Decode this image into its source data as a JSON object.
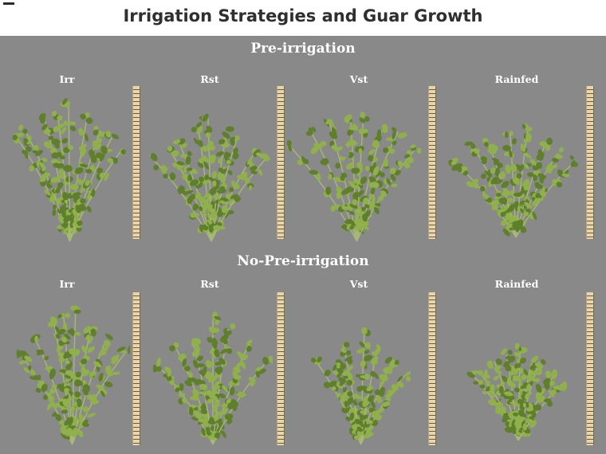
{
  "title": "Irrigation Strategies and Guar Growth",
  "sections": [
    {
      "label": "Pre-irrigation",
      "treatments": [
        "Irr",
        "Rst",
        "Vst",
        "Rainfed"
      ]
    },
    {
      "label": "No-Pre-irrigation",
      "treatments": [
        "Irr",
        "Rst",
        "Vst",
        "Rainfed"
      ]
    }
  ],
  "colors": {
    "background_panel": "#898989",
    "leaf_light": "#8fb04a",
    "leaf_dark": "#5f7f2c",
    "stem": "#a8b878",
    "ruler": "#e9d5ac"
  }
}
